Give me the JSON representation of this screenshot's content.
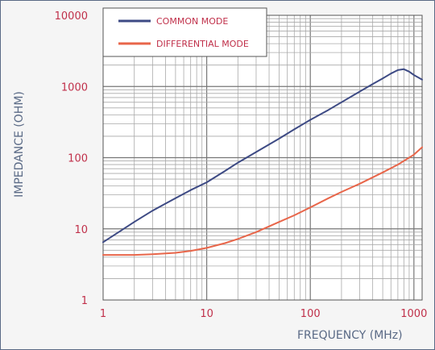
{
  "chart_data": {
    "type": "line",
    "xlabel": "FREQUENCY (MHz)",
    "ylabel": "IMPEDANCE (OHM)",
    "x_scale": "log",
    "y_scale": "log",
    "xlim": [
      1,
      1200
    ],
    "ylim": [
      1,
      10000
    ],
    "x_ticks": [
      "1",
      "10",
      "100",
      "1000"
    ],
    "y_ticks": [
      "1",
      "10",
      "100",
      "1000",
      "10000"
    ],
    "grid": true,
    "legend_position": "top-left",
    "series": [
      {
        "name": "COMMON MODE",
        "color": "#3d4a84",
        "x": [
          1,
          1.5,
          2,
          3,
          5,
          7,
          10,
          15,
          20,
          30,
          50,
          70,
          100,
          150,
          200,
          300,
          400,
          500,
          600,
          700,
          800,
          900,
          1000,
          1200
        ],
        "y": [
          6.5,
          9.5,
          12.5,
          18,
          27,
          35,
          45,
          65,
          85,
          120,
          185,
          250,
          340,
          470,
          600,
          850,
          1080,
          1300,
          1520,
          1700,
          1750,
          1620,
          1450,
          1250
        ]
      },
      {
        "name": "DIFFERENTIAL MODE",
        "color": "#e8664a",
        "x": [
          1,
          2,
          3,
          5,
          7,
          10,
          15,
          20,
          30,
          50,
          70,
          100,
          150,
          200,
          300,
          500,
          700,
          1000,
          1200
        ],
        "y": [
          4.3,
          4.3,
          4.4,
          4.6,
          4.9,
          5.4,
          6.3,
          7.2,
          9.0,
          12.5,
          15.5,
          20,
          27,
          33,
          43,
          62,
          80,
          110,
          140
        ]
      }
    ]
  }
}
